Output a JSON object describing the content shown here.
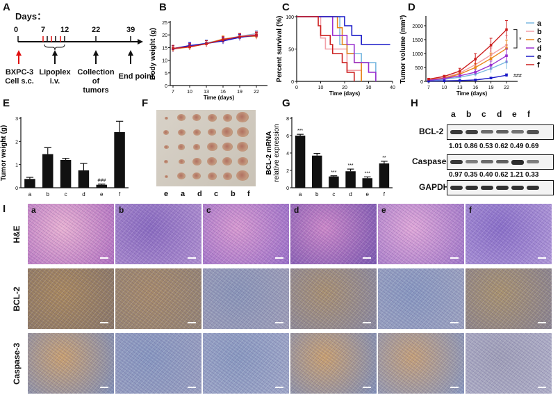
{
  "panels": {
    "A": "A",
    "B": "B",
    "C": "C",
    "D": "D",
    "E": "E",
    "F": "F",
    "G": "G",
    "H": "H",
    "I": "I"
  },
  "timeline": {
    "title": "Days：",
    "days": [
      "0",
      "7",
      "12",
      "22",
      "39"
    ],
    "events": [
      {
        "line1": "BXPC-3",
        "line2": "Cell s.c."
      },
      {
        "line1": "Lipoplex",
        "line2": "i.v."
      },
      {
        "line1": "Collection of",
        "line2": "tumors"
      },
      {
        "line1": "End point",
        "line2": ""
      }
    ],
    "colors": {
      "start": "#e01010",
      "injection": "#e01010",
      "other": "#111111"
    }
  },
  "groups": [
    "a",
    "b",
    "c",
    "d",
    "e",
    "f"
  ],
  "group_colors": {
    "a": "#7ab8e0",
    "b": "#f2a0a8",
    "c": "#e8861a",
    "d": "#9a30d0",
    "e": "#1a1ac8",
    "f": "#cc1f1f"
  },
  "chart_data": [
    {
      "id": "B",
      "type": "line",
      "xlabel": "Time (days)",
      "ylabel": "Body weight (g)",
      "x": [
        7,
        10,
        13,
        16,
        19,
        22
      ],
      "xticks": [
        "7",
        "10",
        "13",
        "16",
        "19",
        "22"
      ],
      "yticks": [
        "0",
        "5",
        "10",
        "15",
        "20",
        "25"
      ],
      "ylim": [
        0,
        25
      ],
      "series": [
        {
          "name": "a",
          "values": [
            14.6,
            15.6,
            16.8,
            18.2,
            19.5,
            20.5
          ]
        },
        {
          "name": "b",
          "values": [
            14.5,
            15.4,
            16.6,
            18.0,
            19.4,
            20.2
          ]
        },
        {
          "name": "c",
          "values": [
            14.4,
            15.2,
            16.5,
            18.4,
            19.2,
            19.5
          ]
        },
        {
          "name": "d",
          "values": [
            14.5,
            15.5,
            16.6,
            17.8,
            19.1,
            19.8
          ]
        },
        {
          "name": "e",
          "values": [
            14.6,
            15.8,
            16.6,
            17.6,
            19.0,
            19.9
          ]
        },
        {
          "name": "f",
          "values": [
            14.7,
            15.3,
            16.5,
            18.1,
            19.3,
            19.9
          ]
        }
      ],
      "error": 1.2
    },
    {
      "id": "C",
      "type": "line",
      "step": true,
      "xlabel": "Time (days)",
      "ylabel": "Percent survival (%)",
      "xticks": [
        "0",
        "10",
        "20",
        "30",
        "40"
      ],
      "yticks": [
        "0",
        "50",
        "100"
      ],
      "xlim": [
        0,
        40
      ],
      "ylim": [
        0,
        100
      ],
      "series": [
        {
          "name": "a",
          "points": [
            [
              0,
              100
            ],
            [
              18,
              100
            ],
            [
              18,
              57
            ],
            [
              21,
              57
            ],
            [
              21,
              43
            ],
            [
              27,
              43
            ],
            [
              27,
              29
            ],
            [
              33,
              29
            ],
            [
              33,
              0
            ]
          ]
        },
        {
          "name": "b",
          "points": [
            [
              0,
              100
            ],
            [
              10,
              100
            ],
            [
              10,
              67
            ],
            [
              12,
              67
            ],
            [
              12,
              50
            ],
            [
              21,
              50
            ],
            [
              21,
              17
            ],
            [
              27,
              17
            ],
            [
              27,
              0
            ]
          ]
        },
        {
          "name": "c",
          "points": [
            [
              0,
              100
            ],
            [
              17,
              100
            ],
            [
              17,
              83
            ],
            [
              19,
              83
            ],
            [
              19,
              57
            ],
            [
              21,
              57
            ],
            [
              21,
              43
            ],
            [
              24,
              43
            ],
            [
              24,
              29
            ],
            [
              27,
              29
            ],
            [
              27,
              0
            ]
          ]
        },
        {
          "name": "d",
          "points": [
            [
              0,
              100
            ],
            [
              15,
              100
            ],
            [
              15,
              71
            ],
            [
              21,
              71
            ],
            [
              21,
              57
            ],
            [
              24,
              57
            ],
            [
              24,
              29
            ],
            [
              30,
              29
            ],
            [
              30,
              14
            ],
            [
              33,
              14
            ],
            [
              33,
              0
            ]
          ]
        },
        {
          "name": "e",
          "points": [
            [
              0,
              100
            ],
            [
              20,
              100
            ],
            [
              20,
              86
            ],
            [
              23,
              86
            ],
            [
              23,
              71
            ],
            [
              27,
              71
            ],
            [
              27,
              57
            ],
            [
              39,
              57
            ]
          ]
        },
        {
          "name": "f",
          "points": [
            [
              0,
              100
            ],
            [
              9,
              100
            ],
            [
              9,
              86
            ],
            [
              10,
              86
            ],
            [
              10,
              71
            ],
            [
              14,
              71
            ],
            [
              14,
              57
            ],
            [
              15,
              57
            ],
            [
              15,
              43
            ],
            [
              19,
              43
            ],
            [
              19,
              29
            ],
            [
              21,
              29
            ],
            [
              21,
              14
            ],
            [
              24,
              14
            ],
            [
              24,
              0
            ]
          ]
        }
      ]
    },
    {
      "id": "D",
      "type": "line",
      "xlabel": "Time (days)",
      "ylabel": "Tumor volume  (mm³)",
      "x": [
        7,
        10,
        13,
        16,
        19,
        22
      ],
      "xticks": [
        "7",
        "10",
        "13",
        "16",
        "19",
        "22"
      ],
      "yticks": [
        "0",
        "500",
        "1000",
        "1500",
        "2000"
      ],
      "ylim": [
        0,
        2300
      ],
      "legend": "right",
      "annotations": [
        "*",
        "###"
      ],
      "series": [
        {
          "name": "a",
          "values": [
            30,
            70,
            150,
            260,
            460,
            700
          ],
          "err": [
            10,
            20,
            40,
            80,
            150,
            250
          ]
        },
        {
          "name": "b",
          "values": [
            60,
            140,
            300,
            600,
            950,
            1300
          ],
          "err": [
            20,
            40,
            80,
            180,
            250,
            350
          ]
        },
        {
          "name": "c",
          "values": [
            50,
            120,
            260,
            500,
            820,
            1180
          ],
          "err": [
            15,
            30,
            60,
            140,
            200,
            300
          ]
        },
        {
          "name": "d",
          "values": [
            40,
            100,
            200,
            330,
            580,
            920
          ],
          "err": [
            10,
            25,
            50,
            90,
            150,
            250
          ]
        },
        {
          "name": "e",
          "values": [
            10,
            20,
            30,
            50,
            120,
            220
          ],
          "err": [
            5,
            5,
            10,
            15,
            30,
            50
          ]
        },
        {
          "name": "f",
          "values": [
            80,
            180,
            370,
            800,
            1300,
            1860
          ],
          "err": [
            20,
            40,
            100,
            200,
            250,
            330
          ]
        }
      ]
    },
    {
      "id": "E",
      "type": "bar",
      "ylabel": "Tumor weight (g)",
      "categories": [
        "a",
        "b",
        "c",
        "d",
        "e",
        "f"
      ],
      "values": [
        0.38,
        1.45,
        1.2,
        0.75,
        0.13,
        2.4
      ],
      "err": [
        0.07,
        0.28,
        0.07,
        0.3,
        0.03,
        0.47
      ],
      "yticks": [
        "0",
        "1",
        "2",
        "3"
      ],
      "ylim": [
        0,
        3
      ],
      "annotations": [
        "",
        "",
        "",
        "",
        "###",
        ""
      ]
    },
    {
      "id": "G",
      "type": "bar",
      "ylabel": "BCL-2 mRNA",
      "ylabel2": "relative expression",
      "categories": [
        "a",
        "b",
        "c",
        "d",
        "e",
        "f"
      ],
      "values": [
        6.0,
        3.7,
        1.3,
        1.9,
        1.1,
        2.8
      ],
      "err": [
        0.15,
        0.25,
        0.08,
        0.25,
        0.15,
        0.25
      ],
      "yticks": [
        "0",
        "2",
        "4",
        "6",
        "8"
      ],
      "ylim": [
        0,
        8
      ],
      "annotations": [
        "***",
        "",
        "***",
        "***",
        "***",
        "**"
      ]
    }
  ],
  "photo": {
    "labels": [
      "e",
      "a",
      "d",
      "c",
      "b",
      "f"
    ]
  },
  "western": {
    "lanes": [
      "a",
      "b",
      "c",
      "d",
      "e",
      "f"
    ],
    "rows": [
      {
        "name": "BCL-2",
        "intensity": [
          0.9,
          0.85,
          0.5,
          0.6,
          0.45,
          0.7
        ]
      },
      {
        "name": "Caspase-3",
        "intensity": [
          0.9,
          0.35,
          0.5,
          0.6,
          1.0,
          0.35
        ]
      },
      {
        "name": "GAPDH",
        "intensity": [
          0.95,
          0.95,
          0.95,
          0.95,
          0.95,
          0.95
        ]
      }
    ],
    "bcl2_values": [
      "1.01",
      "0.86",
      "0.53",
      "0.62",
      "0.49",
      "0.69"
    ],
    "casp3_values": [
      "0.97",
      "0.35",
      "0.40",
      "0.62",
      "1.21",
      "0.33"
    ]
  },
  "histology": {
    "rows": [
      "H&E",
      "BCL-2",
      "Caspase-3"
    ],
    "cols": [
      "a",
      "b",
      "c",
      "d",
      "e",
      "f"
    ]
  }
}
